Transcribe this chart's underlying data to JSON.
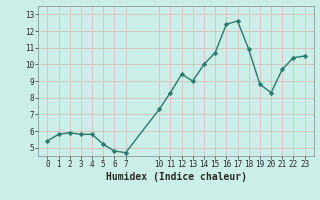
{
  "x": [
    0,
    1,
    2,
    3,
    4,
    5,
    6,
    7,
    10,
    11,
    12,
    13,
    14,
    15,
    16,
    17,
    18,
    19,
    20,
    21,
    22,
    23
  ],
  "y": [
    5.4,
    5.8,
    5.9,
    5.8,
    5.8,
    5.2,
    4.8,
    4.7,
    7.3,
    8.3,
    9.4,
    9.0,
    10.0,
    10.7,
    12.4,
    12.6,
    10.9,
    8.8,
    8.3,
    9.7,
    10.4,
    10.5
  ],
  "line_color": "#2a7a6e",
  "marker": "D",
  "marker_size": 2.2,
  "bg_color": "#cceee8",
  "grid_color": "#c0ddd8",
  "xlabel": "Humidex (Indice chaleur)",
  "xlim": [
    -0.8,
    23.8
  ],
  "ylim": [
    4.5,
    13.5
  ],
  "yticks": [
    5,
    6,
    7,
    8,
    9,
    10,
    11,
    12,
    13
  ],
  "xticks": [
    0,
    1,
    2,
    3,
    4,
    5,
    6,
    7,
    10,
    11,
    12,
    13,
    14,
    15,
    16,
    17,
    18,
    19,
    20,
    21,
    22,
    23
  ],
  "tick_fontsize": 5.5,
  "xlabel_fontsize": 7.0,
  "linewidth": 1.0
}
